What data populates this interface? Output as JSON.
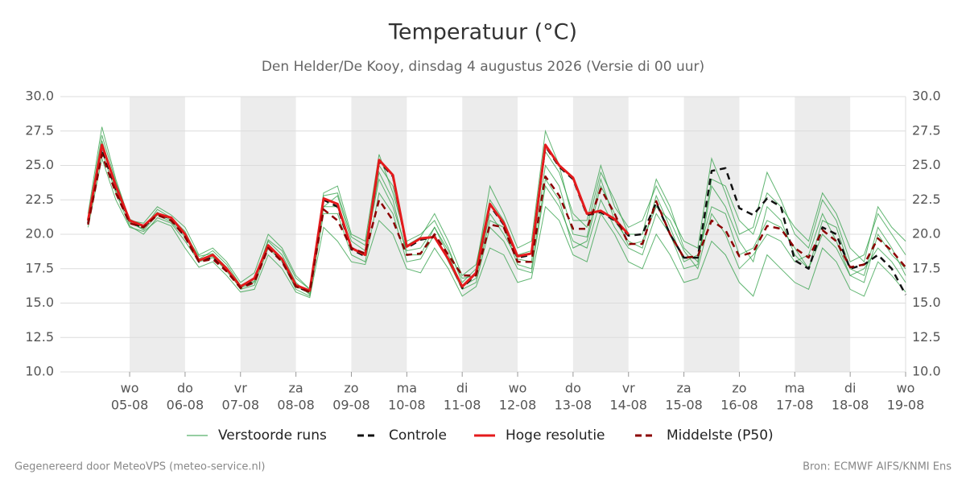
{
  "chart_data": {
    "type": "line",
    "title": "Temperatuur (°C)",
    "subtitle": "Den Helder/De Kooy, dinsdag  4 augustus 2026 (Versie di 00 uur)",
    "footer_left": "Gegenereerd door MeteoVPS (meteo-service.nl)",
    "footer_right": "Bron: ECMWF AIFS/KNMI Ens",
    "x": [
      0.25,
      0.5,
      0.75,
      1,
      1.25,
      1.5,
      1.75,
      2,
      2.25,
      2.5,
      2.75,
      3,
      3.25,
      3.5,
      3.75,
      4,
      4.25,
      4.5,
      4.75,
      5,
      5.25,
      5.5,
      5.75,
      6,
      6.25,
      6.5,
      6.75,
      7,
      7.25,
      7.5,
      7.75,
      8,
      8.25,
      8.5,
      8.75,
      9,
      9.25,
      9.5,
      9.75,
      10,
      10.25,
      10.5,
      10.75,
      11,
      11.25,
      11.5,
      11.75,
      12,
      12.25,
      12.5,
      12.75,
      13,
      13.25,
      13.5,
      13.75,
      14,
      14.25,
      14.5,
      14.75,
      15
    ],
    "xlim": [
      -0.25,
      15
    ],
    "xticks": [
      {
        "value": 1,
        "label": "05-08"
      },
      {
        "value": 2,
        "label": "06-08"
      },
      {
        "value": 3,
        "label": "07-08"
      },
      {
        "value": 4,
        "label": "08-08"
      },
      {
        "value": 5,
        "label": "09-08"
      },
      {
        "value": 6,
        "label": "10-08"
      },
      {
        "value": 7,
        "label": "11-08"
      },
      {
        "value": 8,
        "label": "12-08"
      },
      {
        "value": 9,
        "label": "13-08"
      },
      {
        "value": 10,
        "label": "14-08"
      },
      {
        "value": 11,
        "label": "15-08"
      },
      {
        "value": 12,
        "label": "16-08"
      },
      {
        "value": 13,
        "label": "17-08"
      },
      {
        "value": 14,
        "label": "18-08"
      },
      {
        "value": 15,
        "label": "19-08"
      }
    ],
    "xtick_weekdays": [
      "wo",
      "do",
      "vr",
      "za",
      "zo",
      "ma",
      "di",
      "wo",
      "do",
      "vr",
      "za",
      "zo",
      "ma",
      "di",
      "wo"
    ],
    "alternate_day_shading": true,
    "ylim": [
      10,
      30
    ],
    "yticks": [
      {
        "value": 10,
        "label": "10.0"
      },
      12.5,
      {
        "value": 15,
        "label": "15.0"
      },
      17.5,
      {
        "value": 20,
        "label": "20.0"
      },
      22.5,
      {
        "value": 25,
        "label": "25.0"
      },
      27.5,
      {
        "value": 30,
        "label": "30.0"
      }
    ],
    "mirror_y_axis": true,
    "grid": true,
    "legend": "bottom",
    "ensemble": {
      "name": "Verstoorde runs",
      "color": "#2e9e44",
      "members": [
        [
          21.5,
          27.8,
          24.0,
          21.0,
          20.8,
          22.0,
          21.4,
          20.5,
          18.5,
          19.0,
          18.0,
          16.5,
          17.2,
          20.0,
          19.0,
          17.0,
          16.0,
          23.0,
          23.5,
          20.0,
          19.5,
          25.8,
          23.0,
          19.5,
          20.0,
          21.0,
          19.0,
          16.5,
          17.5,
          23.5,
          21.5,
          19.0,
          19.5,
          27.5,
          25.0,
          21.0,
          21.0,
          25.0,
          22.0,
          20.5,
          21.0,
          23.5,
          21.5,
          19.5,
          19.0,
          25.5,
          23.0,
          20.0,
          20.5,
          24.5,
          22.5,
          20.0,
          19.0,
          22.5,
          21.0,
          18.0,
          18.5,
          21.5,
          20.0,
          18.5
        ],
        [
          20.5,
          25.5,
          22.5,
          20.5,
          20.2,
          21.0,
          20.6,
          19.0,
          17.6,
          18.0,
          17.0,
          15.8,
          16.0,
          18.5,
          17.5,
          15.8,
          15.4,
          20.5,
          19.5,
          18.0,
          17.8,
          21.0,
          20.0,
          17.5,
          17.2,
          19.0,
          17.5,
          15.5,
          16.2,
          19.0,
          18.5,
          16.5,
          16.8,
          22.0,
          21.0,
          18.5,
          18.0,
          21.5,
          20.0,
          18.0,
          17.5,
          20.0,
          18.5,
          16.5,
          16.8,
          19.5,
          18.5,
          16.5,
          15.5,
          18.5,
          17.5,
          16.5,
          16.0,
          19.0,
          18.0,
          16.0,
          15.5,
          18.0,
          17.0,
          15.8
        ],
        [
          21.0,
          26.8,
          23.5,
          20.8,
          20.4,
          21.8,
          21.2,
          20.2,
          18.2,
          18.8,
          17.8,
          16.3,
          16.8,
          19.5,
          18.5,
          16.5,
          15.6,
          22.0,
          22.8,
          19.5,
          18.8,
          24.0,
          22.0,
          18.8,
          19.0,
          20.5,
          18.8,
          16.8,
          17.0,
          21.5,
          20.0,
          18.2,
          18.0,
          25.0,
          23.5,
          20.0,
          19.8,
          24.0,
          21.0,
          19.5,
          19.0,
          22.8,
          20.5,
          18.0,
          18.5,
          22.0,
          21.5,
          18.5,
          19.0,
          21.0,
          20.5,
          19.0,
          17.5,
          21.0,
          20.5,
          17.5,
          17.0,
          20.5,
          19.0,
          17.0
        ],
        [
          20.8,
          26.0,
          23.0,
          20.6,
          20.0,
          21.2,
          20.8,
          19.5,
          18.0,
          18.3,
          17.5,
          16.0,
          16.3,
          19.0,
          18.0,
          16.0,
          15.5,
          21.5,
          21.5,
          18.5,
          18.0,
          23.0,
          21.5,
          18.0,
          18.2,
          20.0,
          18.0,
          16.0,
          16.5,
          20.5,
          19.5,
          17.5,
          17.2,
          23.5,
          22.0,
          19.5,
          19.0,
          22.5,
          20.5,
          19.0,
          18.5,
          21.5,
          20.0,
          17.5,
          17.8,
          23.5,
          22.0,
          19.5,
          18.0,
          22.0,
          21.0,
          18.5,
          17.5,
          20.0,
          19.0,
          17.0,
          17.5,
          19.0,
          18.0,
          16.5
        ],
        [
          21.2,
          27.2,
          23.8,
          21.1,
          20.6,
          21.6,
          21.0,
          20.0,
          18.4,
          18.6,
          17.6,
          16.2,
          16.6,
          19.6,
          18.8,
          16.8,
          16.0,
          22.8,
          23.0,
          19.8,
          19.2,
          25.0,
          23.5,
          19.2,
          19.8,
          21.5,
          19.5,
          17.0,
          17.8,
          22.5,
          21.0,
          18.5,
          18.8,
          26.0,
          24.5,
          21.5,
          20.5,
          24.5,
          22.5,
          20.0,
          20.0,
          24.0,
          22.0,
          19.0,
          18.0,
          24.0,
          23.5,
          21.0,
          20.0,
          23.0,
          22.0,
          20.5,
          19.5,
          23.0,
          21.5,
          19.0,
          18.0,
          22.0,
          20.5,
          19.5
        ],
        [
          20.9,
          26.5,
          23.2,
          20.9,
          20.3,
          21.4,
          20.9,
          19.8,
          18.1,
          18.4,
          17.3,
          16.1,
          16.5,
          19.2,
          18.2,
          16.2,
          15.7,
          22.0,
          22.0,
          19.0,
          18.5,
          24.5,
          22.5,
          18.5,
          18.5,
          20.5,
          18.5,
          16.2,
          16.8,
          21.0,
          20.5,
          17.8,
          17.5,
          24.0,
          22.5,
          19.0,
          19.5,
          23.5,
          21.5,
          19.2,
          19.5,
          22.0,
          21.0,
          18.8,
          17.5,
          21.5,
          20.0,
          17.5,
          18.5,
          20.0,
          19.5,
          18.0,
          18.5,
          21.5,
          19.5,
          17.0,
          16.5,
          20.0,
          18.5,
          17.5
        ]
      ]
    },
    "series": [
      {
        "name": "Controle",
        "color": "#111111",
        "dash": true,
        "values": [
          20.8,
          26.2,
          23.3,
          20.9,
          20.5,
          21.5,
          21.1,
          19.8,
          18.0,
          18.3,
          17.4,
          16.1,
          16.6,
          19.1,
          18.1,
          16.2,
          15.8,
          22.5,
          22.0,
          18.9,
          18.4,
          25.3,
          24.2,
          19.0,
          19.6,
          19.8,
          18.2,
          16.1,
          17.1,
          22.1,
          20.7,
          18.3,
          18.5,
          26.4,
          24.9,
          24.0,
          21.4,
          21.6,
          21.0,
          19.9,
          20.0,
          22.3,
          20.0,
          18.3,
          18.3,
          24.6,
          24.8,
          21.9,
          21.4,
          22.6,
          22.0,
          18.1,
          17.5,
          20.5,
          20.0,
          17.5,
          17.8,
          18.5,
          17.5,
          15.6
        ]
      },
      {
        "name": "Hoge resolutie",
        "color": "#e41a1c",
        "dash": false,
        "values": [
          21.0,
          26.5,
          23.5,
          21.0,
          20.6,
          21.5,
          21.2,
          20.0,
          18.1,
          18.5,
          17.5,
          16.2,
          16.8,
          19.2,
          18.2,
          16.3,
          15.9,
          22.6,
          22.2,
          19.0,
          18.5,
          25.4,
          24.3,
          19.1,
          19.7,
          19.8,
          18.2,
          16.2,
          17.2,
          22.2,
          20.8,
          18.4,
          18.6,
          26.5,
          25.0,
          24.1,
          21.5,
          21.7,
          21.1,
          20.0,
          null,
          null,
          null,
          null,
          null,
          null,
          null,
          null,
          null,
          null,
          null,
          null,
          null,
          null,
          null,
          null,
          null,
          null,
          null,
          null
        ]
      },
      {
        "name": "Middelste (P50)",
        "color": "#8b0000",
        "dash": true,
        "values": [
          20.7,
          25.8,
          23.0,
          20.8,
          20.5,
          21.4,
          21.0,
          19.8,
          18.0,
          18.2,
          17.3,
          16.1,
          16.5,
          19.0,
          18.0,
          16.2,
          15.8,
          21.8,
          21.0,
          19.0,
          18.6,
          22.5,
          21.0,
          18.5,
          18.6,
          20.0,
          18.5,
          17.0,
          17.0,
          20.7,
          20.5,
          18.0,
          18.0,
          24.2,
          22.8,
          20.4,
          20.4,
          23.3,
          21.5,
          19.3,
          19.3,
          22.4,
          20.0,
          18.3,
          18.4,
          21.0,
          20.3,
          18.4,
          18.7,
          20.6,
          20.4,
          19.0,
          18.3,
          20.3,
          19.5,
          17.6,
          17.8,
          19.7,
          18.8,
          17.6
        ]
      }
    ]
  }
}
